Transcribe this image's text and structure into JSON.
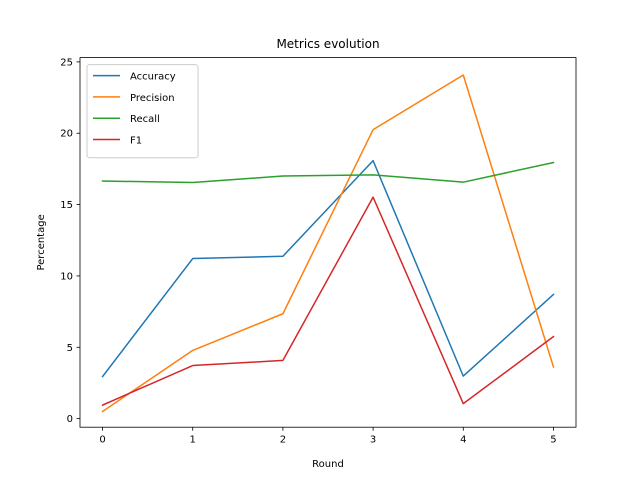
{
  "chart_data": {
    "type": "line",
    "title": "Metrics evolution",
    "xlabel": "Round",
    "ylabel": "Percentage",
    "x": [
      0,
      1,
      2,
      3,
      4,
      5
    ],
    "xlim": [
      -0.25,
      5.25
    ],
    "ylim": [
      -0.6,
      25.3
    ],
    "xticks": [
      0,
      1,
      2,
      3,
      4,
      5
    ],
    "yticks": [
      0,
      5,
      10,
      15,
      20,
      25
    ],
    "grid": false,
    "legend_position": "upper-left",
    "series": [
      {
        "name": "Accuracy",
        "color": "#1f77b4",
        "values": [
          2.95,
          11.22,
          11.38,
          18.08,
          2.98,
          8.7
        ]
      },
      {
        "name": "Precision",
        "color": "#ff7f0e",
        "values": [
          0.5,
          4.78,
          7.35,
          20.25,
          24.08,
          3.62
        ]
      },
      {
        "name": "Recall",
        "color": "#2ca02c",
        "values": [
          16.65,
          16.55,
          17.0,
          17.08,
          16.57,
          17.95
        ]
      },
      {
        "name": "F1",
        "color": "#d62728",
        "values": [
          0.95,
          3.72,
          4.08,
          15.52,
          1.05,
          5.75
        ]
      }
    ]
  }
}
